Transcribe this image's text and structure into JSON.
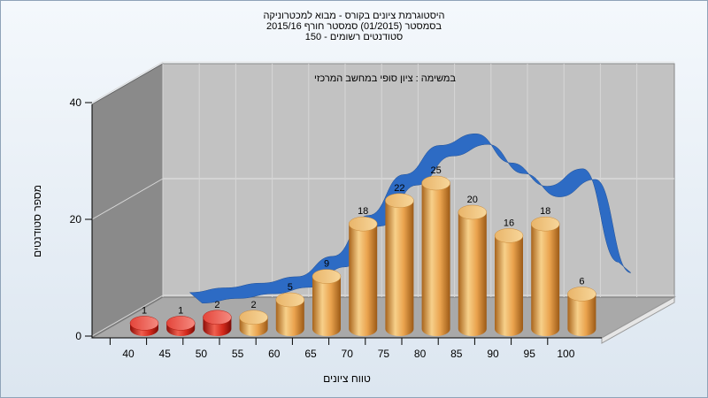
{
  "chart_data": {
    "type": "bar",
    "title_lines": [
      "היסטוגרמת ציונים בקורס - מבוא למכטרוניקה",
      "בסמסטר  (01/2015)  סמסטר חורף 2015/16",
      "סטודנטים רשומים - 150"
    ],
    "subtitle": "במשימה : ציון סופי במחשב המרכזי",
    "xlabel": "טווח ציונים",
    "ylabel": "מספר סטודנטים",
    "y_ticks": [
      "0",
      "20",
      "40"
    ],
    "ylim": [
      0,
      40
    ],
    "categories": [
      "40",
      "45",
      "50",
      "55",
      "60",
      "65",
      "70",
      "75",
      "80",
      "85",
      "90",
      "95",
      "100"
    ],
    "bars": [
      {
        "x": "40",
        "value": 1,
        "label": "1",
        "color": "red"
      },
      {
        "x": "45",
        "value": 1,
        "label": "1",
        "color": "red"
      },
      {
        "x": "50",
        "value": 2,
        "label": "2",
        "color": "red"
      },
      {
        "x": "55",
        "value": 2,
        "label": "2",
        "color": "orange"
      },
      {
        "x": "60",
        "value": 5,
        "label": "5",
        "color": "orange"
      },
      {
        "x": "65",
        "value": 9,
        "label": "9",
        "color": "orange"
      },
      {
        "x": "70",
        "value": 18,
        "label": "18",
        "color": "orange"
      },
      {
        "x": "75",
        "value": 22,
        "label": "22",
        "color": "orange"
      },
      {
        "x": "80",
        "value": 25,
        "label": "25",
        "color": "orange"
      },
      {
        "x": "85",
        "value": 20,
        "label": "20",
        "color": "orange"
      },
      {
        "x": "90",
        "value": 16,
        "label": "16",
        "color": "orange"
      },
      {
        "x": "95",
        "value": 18,
        "label": "18",
        "color": "orange"
      },
      {
        "x": "100",
        "value": 6,
        "label": "6",
        "color": "orange"
      }
    ],
    "trend_line": {
      "type": "line",
      "x": [
        "45",
        "50",
        "55",
        "60",
        "65",
        "70",
        "75",
        "80",
        "85",
        "90",
        "95",
        "100",
        "105"
      ],
      "values": [
        0.8,
        1.6,
        2.4,
        3.5,
        7,
        14,
        21,
        26,
        28,
        23,
        19,
        22,
        6
      ]
    },
    "colors": {
      "red": "#d42a1c",
      "orange": "#e6a04a",
      "trend": "#2d6bc4",
      "back_wall": "#c2c2c2",
      "side_wall": "#8a8a8a",
      "floor": "#a9a9a9"
    },
    "grid": true
  }
}
